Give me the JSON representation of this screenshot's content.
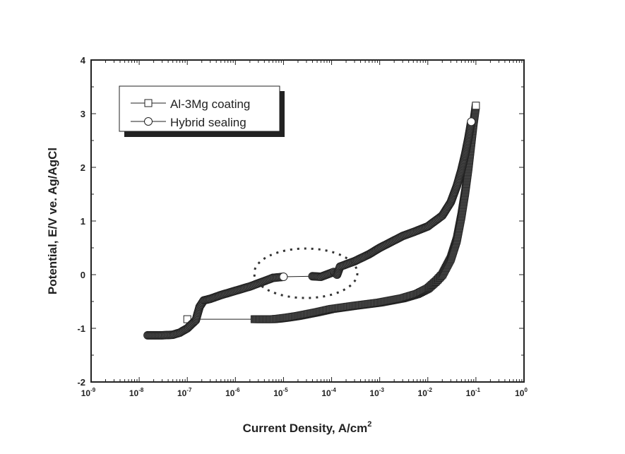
{
  "chart_data": {
    "type": "scatter",
    "title": "",
    "xlabel": "Current Density, A/cm",
    "xlabel_sup": "2",
    "ylabel": "Potential, E/V ve. Ag/AgCl",
    "xscale": "log",
    "xlim": [
      1e-09,
      1
    ],
    "ylim": [
      -2,
      4
    ],
    "xticks": [
      {
        "base": "10",
        "exp": "-9"
      },
      {
        "base": "10",
        "exp": "-8"
      },
      {
        "base": "10",
        "exp": "-7"
      },
      {
        "base": "10",
        "exp": "-6"
      },
      {
        "base": "10",
        "exp": "-5"
      },
      {
        "base": "10",
        "exp": "-4"
      },
      {
        "base": "10",
        "exp": "-3"
      },
      {
        "base": "10",
        "exp": "-2"
      },
      {
        "base": "10",
        "exp": "-1"
      },
      {
        "base": "10",
        "exp": "0"
      }
    ],
    "yticks": [
      "4",
      "3",
      "2",
      "1",
      "0",
      "-1",
      "-2"
    ],
    "legend_position": "top-left",
    "grid": false,
    "series": [
      {
        "name": "Al-3Mg coating",
        "marker": "square",
        "color": "#222222",
        "x": [
          1e-07,
          2.5e-06,
          4e-06,
          6e-06,
          8e-06,
          1.2e-05,
          2e-05,
          5e-05,
          0.0001,
          0.0003,
          0.001,
          0.003,
          0.006,
          0.01,
          0.015,
          0.02,
          0.03,
          0.04,
          0.05,
          0.06,
          0.07,
          0.08,
          0.09,
          0.1
        ],
        "y": [
          -0.83,
          -0.83,
          -0.83,
          -0.83,
          -0.82,
          -0.8,
          -0.77,
          -0.7,
          -0.64,
          -0.58,
          -0.52,
          -0.44,
          -0.36,
          -0.26,
          -0.12,
          0.0,
          0.3,
          0.65,
          1.1,
          1.55,
          2.0,
          2.45,
          2.85,
          3.15
        ]
      },
      {
        "name": "Hybrid sealing",
        "marker": "circle",
        "color": "#222222",
        "x": [
          1.5e-08,
          3e-08,
          5e-08,
          7e-08,
          1e-07,
          1.5e-07,
          1.8e-07,
          2.2e-07,
          3e-07,
          5e-07,
          1e-06,
          2e-06,
          4e-06,
          6e-06,
          1e-05,
          4e-05,
          6e-05,
          0.00011,
          0.00013,
          0.00015,
          0.0003,
          0.0006,
          0.001,
          0.003,
          0.006,
          0.01,
          0.02,
          0.03,
          0.04,
          0.05,
          0.06,
          0.07,
          0.08
        ],
        "y": [
          -1.13,
          -1.13,
          -1.12,
          -1.08,
          -1.0,
          -0.85,
          -0.6,
          -0.48,
          -0.45,
          -0.38,
          -0.3,
          -0.22,
          -0.12,
          -0.06,
          -0.04,
          -0.03,
          -0.04,
          0.05,
          0.0,
          0.15,
          0.25,
          0.38,
          0.5,
          0.72,
          0.82,
          0.9,
          1.1,
          1.35,
          1.65,
          1.95,
          2.25,
          2.55,
          2.85
        ]
      }
    ]
  }
}
